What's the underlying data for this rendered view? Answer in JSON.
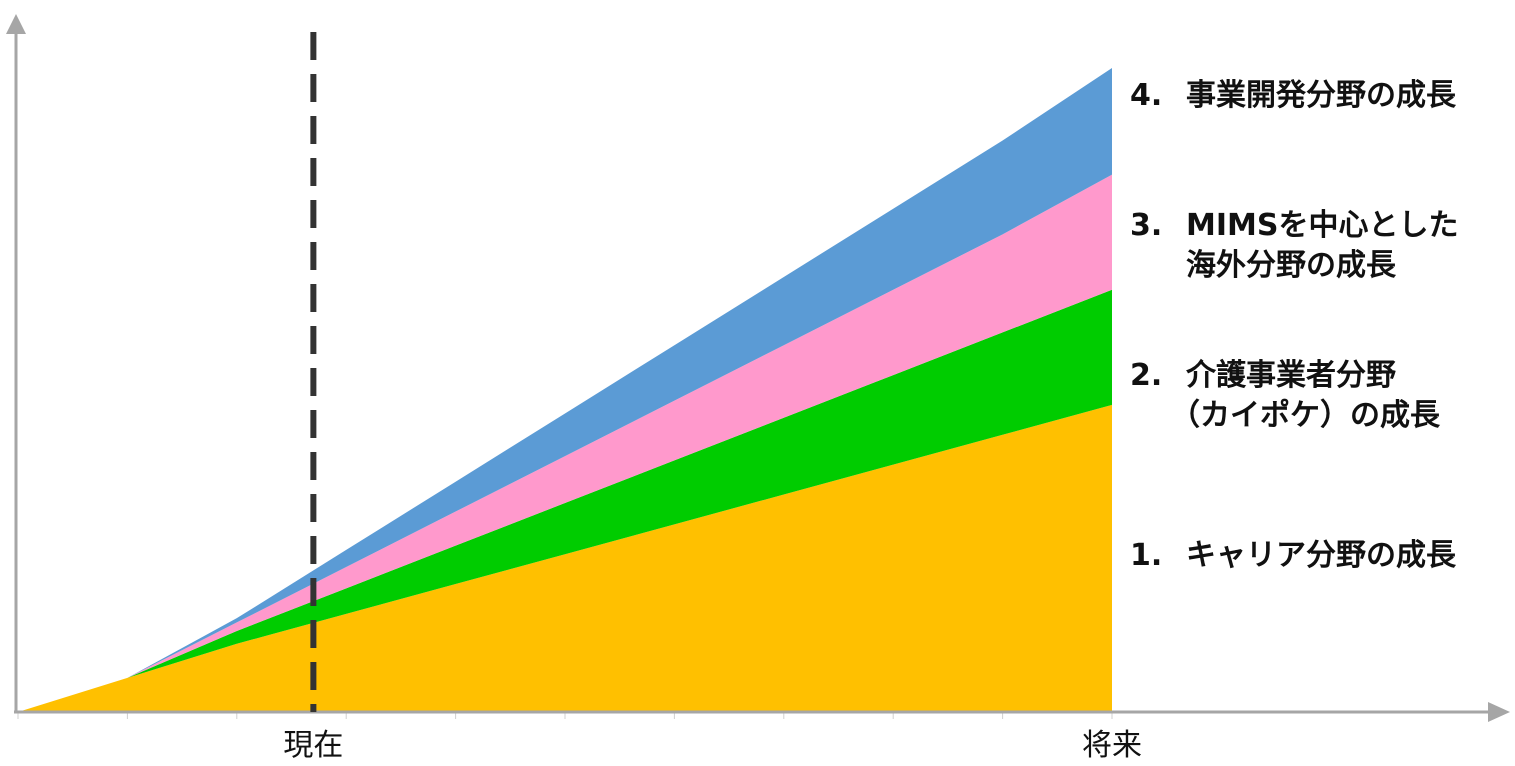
{
  "chart_data": {
    "type": "area",
    "stacked": true,
    "x": [
      0,
      1,
      2,
      3,
      4,
      5,
      6,
      7,
      8,
      9,
      10
    ],
    "x_tick_labels": [
      {
        "x": 2.7,
        "label": "現在"
      },
      {
        "x": 10,
        "label": "将来"
      }
    ],
    "current_marker_x": 2.7,
    "ylim": [
      0,
      10
    ],
    "series": [
      {
        "name": "1. キャリア分野の成長",
        "color": "#FFC000",
        "values": [
          0,
          0.4,
          0.8,
          1.15,
          1.5,
          1.85,
          2.2,
          2.55,
          2.9,
          3.25,
          3.6
        ]
      },
      {
        "name": "2. 介護事業者分野（カイポケ）の成長",
        "color": "#00CC00",
        "values": [
          0,
          0,
          0.15,
          0.3,
          0.45,
          0.6,
          0.75,
          0.9,
          1.05,
          1.2,
          1.35
        ]
      },
      {
        "name": "3. MIMSを中心とした海外分野の成長",
        "color": "#FF99CC",
        "values": [
          0,
          0,
          0.1,
          0.25,
          0.4,
          0.55,
          0.7,
          0.85,
          1.0,
          1.15,
          1.35
        ]
      },
      {
        "name": "4. 事業開発分野の成長",
        "color": "#5B9BD5",
        "values": [
          0,
          0,
          0.05,
          0.2,
          0.35,
          0.5,
          0.65,
          0.8,
          0.95,
          1.1,
          1.25
        ]
      }
    ],
    "legend_placement": "right",
    "grid": false
  },
  "labels": {
    "s4": {
      "num": "4.",
      "line1": "事業開発分野の成長"
    },
    "s3": {
      "num": "3.",
      "line1": "MIMSを中心とした",
      "line2": "海外分野の成長"
    },
    "s2": {
      "num": "2.",
      "line1": "介護事業者分野",
      "line2": "（カイポケ）の成長"
    },
    "s1": {
      "num": "1.",
      "line1": "キャリア分野の成長"
    }
  },
  "colors": {
    "axis": "#A6A6A6",
    "marker": "#333333"
  }
}
